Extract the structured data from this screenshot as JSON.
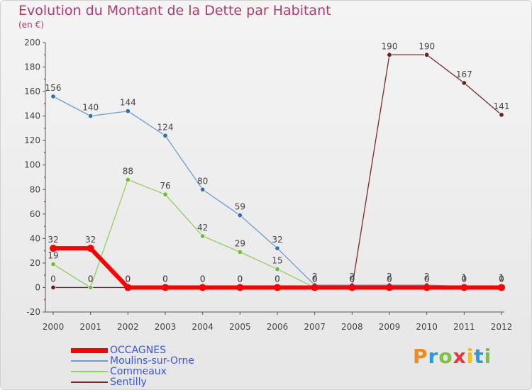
{
  "header": {
    "title": "Evolution du Montant de la Dette par Habitant",
    "subtitle": "(en €)"
  },
  "brand": {
    "letters": [
      "P",
      "r",
      "o",
      "x",
      "i",
      "t",
      "i"
    ],
    "colors": [
      "#f08a1c",
      "#2c9ad8",
      "#7cc241",
      "#e03a3a",
      "#f0c01c",
      "#2c9ad8",
      "#7cc241"
    ]
  },
  "chart_data": {
    "type": "line",
    "title": "Evolution du Montant de la Dette par Habitant",
    "subtitle": "(en €)",
    "x": [
      "2000",
      "2001",
      "2002",
      "2003",
      "2004",
      "2005",
      "2006",
      "2007",
      "2008",
      "2009",
      "2010",
      "2011",
      "2012"
    ],
    "ylim": [
      -20,
      200
    ],
    "yticks": [
      -20,
      0,
      20,
      40,
      60,
      80,
      100,
      120,
      140,
      160,
      180,
      200
    ],
    "grid": false,
    "legend_position": "bottom-left",
    "series": [
      {
        "name": "OCCAGNES",
        "color": "#ff0000",
        "values": [
          32,
          32,
          0,
          0,
          0,
          0,
          0,
          0,
          0,
          0,
          0,
          0,
          0
        ],
        "labels": [
          "32",
          "32",
          "0",
          "0",
          "0",
          "0",
          "0",
          "0",
          "0",
          "0",
          "0",
          "0",
          "0"
        ]
      },
      {
        "name": "Moulins-sur-Orne",
        "color": "#6a9fd4",
        "marker": "#2f6fb5",
        "values": [
          156,
          140,
          144,
          124,
          80,
          59,
          32,
          2,
          2,
          2,
          2,
          1,
          1
        ],
        "labels": [
          "156",
          "140",
          "144",
          "124",
          "80",
          "59",
          "32",
          "2",
          "2",
          "2",
          "2",
          "1",
          "1"
        ]
      },
      {
        "name": "Commeaux",
        "color": "#8ed05a",
        "marker": "#6cbf2e",
        "values": [
          19,
          0,
          88,
          76,
          42,
          29,
          15,
          0,
          0,
          0,
          0,
          0,
          0
        ],
        "labels": [
          "19",
          "0",
          "88",
          "76",
          "42",
          "29",
          "15",
          "0",
          "0",
          "0",
          "0",
          "0",
          "0"
        ]
      },
      {
        "name": "Sentilly",
        "color": "#7a2a2a",
        "marker": "#6b1f1f",
        "values": [
          0,
          0,
          0,
          0,
          0,
          0,
          0,
          0,
          0,
          190,
          190,
          167,
          141
        ],
        "labels": [
          "0",
          "0",
          "0",
          "0",
          "0",
          "0",
          "0",
          "0",
          "0",
          "190",
          "190",
          "167",
          "141"
        ]
      }
    ]
  }
}
